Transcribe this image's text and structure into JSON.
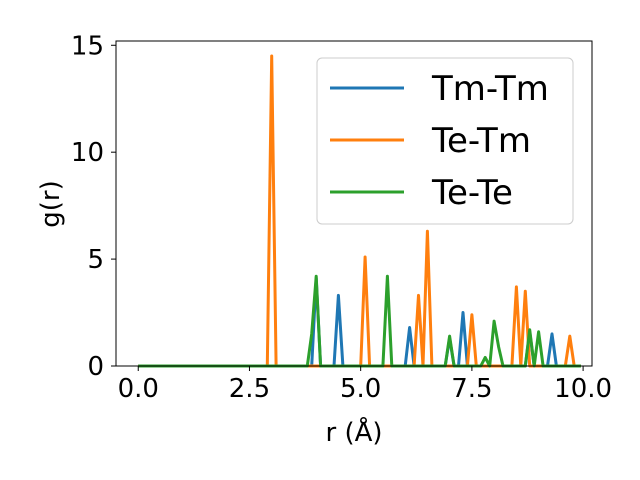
{
  "chart_data": {
    "type": "line",
    "title": "",
    "xlabel": "r (Å)",
    "ylabel": "g(r)",
    "xlim": [
      -0.5,
      10.2
    ],
    "ylim": [
      0,
      15.2
    ],
    "xticks": [
      0.0,
      2.5,
      5.0,
      7.5,
      10.0
    ],
    "xtick_labels": [
      "0.0",
      "2.5",
      "5.0",
      "7.5",
      "10.0"
    ],
    "yticks": [
      0,
      5,
      10,
      15
    ],
    "ytick_labels": [
      "0",
      "5",
      "10",
      "15"
    ],
    "grid": false,
    "legend_position": "top-right",
    "series": [
      {
        "name": "Tm-Tm",
        "color": "#1f77b4",
        "x": [
          0,
          3.9,
          4.0,
          4.1,
          4.4,
          4.5,
          4.6,
          6.0,
          6.1,
          6.2,
          6.9,
          7.0,
          7.1,
          7.2,
          7.3,
          7.4,
          8.7,
          8.8,
          8.9,
          9.2,
          9.3,
          9.4,
          9.95
        ],
        "y": [
          0,
          0,
          4.1,
          0,
          0,
          3.3,
          0,
          0,
          1.8,
          0,
          0,
          1.3,
          0,
          0,
          2.5,
          0,
          0,
          1.6,
          0,
          0,
          1.5,
          0,
          0
        ]
      },
      {
        "name": "Te-Tm",
        "color": "#ff7f0e",
        "x": [
          0,
          2.9,
          3.0,
          3.1,
          5.0,
          5.1,
          5.2,
          6.2,
          6.3,
          6.4,
          6.5,
          6.6,
          7.4,
          7.5,
          7.6,
          8.4,
          8.5,
          8.6,
          8.7,
          8.8,
          9.6,
          9.7,
          9.8,
          9.95
        ],
        "y": [
          0,
          0,
          14.5,
          0,
          0,
          5.1,
          0,
          0,
          3.3,
          0,
          6.3,
          0,
          0,
          2.4,
          0,
          0,
          3.7,
          0,
          3.5,
          0,
          0,
          1.4,
          0,
          0
        ]
      },
      {
        "name": "Te-Te",
        "color": "#2ca02c",
        "x": [
          0,
          3.8,
          3.9,
          4.0,
          4.1,
          5.5,
          5.6,
          5.7,
          6.9,
          7.0,
          7.1,
          7.7,
          7.8,
          7.9,
          8.0,
          8.1,
          8.2,
          8.7,
          8.8,
          8.9,
          9.0,
          9.1,
          9.95
        ],
        "y": [
          0,
          0,
          1.5,
          4.2,
          0,
          0,
          4.2,
          0,
          0,
          1.4,
          0,
          0,
          0.4,
          0,
          2.1,
          0.9,
          0,
          0,
          1.7,
          0,
          1.6,
          0,
          0
        ]
      }
    ]
  }
}
